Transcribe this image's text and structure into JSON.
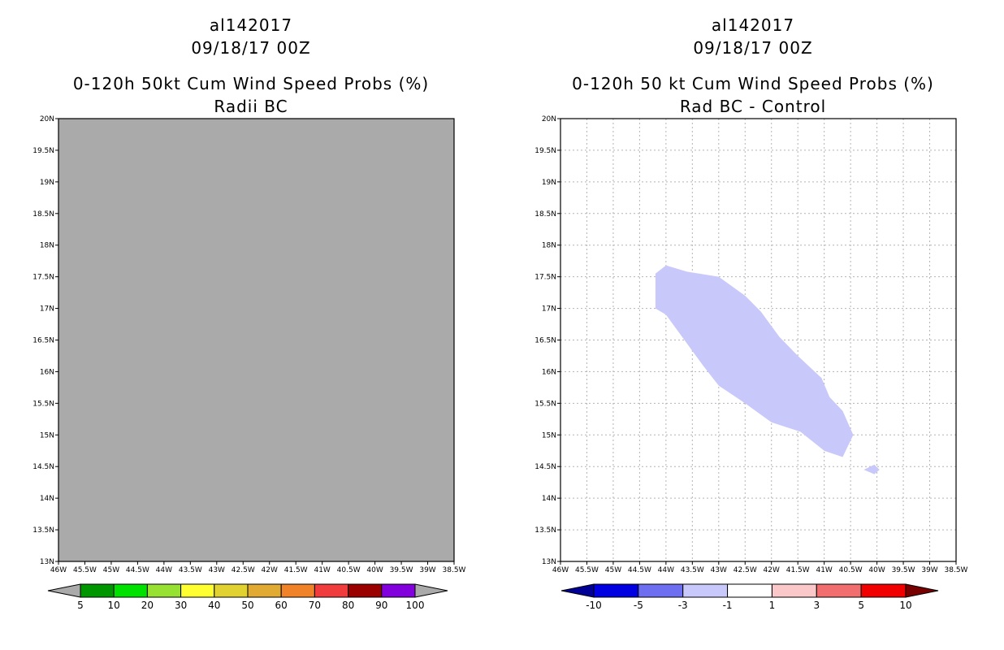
{
  "left_panel": {
    "title_lines": [
      "al142017",
      "09/18/17 00Z",
      "0-120h 50kt Cum Wind Speed Probs (%)",
      "Radii BC"
    ]
  },
  "right_panel": {
    "title_lines": [
      "al142017",
      "09/18/17 00Z",
      "0-120h 50 kt Cum Wind Speed Probs (%)",
      "Rad BC - Control"
    ]
  },
  "chart_data": [
    {
      "type": "heatmap",
      "title": "0-120h 50kt Cum Wind Speed Probs (%)",
      "subtitle": "Radii BC",
      "storm": "al142017",
      "date": "09/18/17 00Z",
      "xlim": [
        -46,
        -38.5
      ],
      "ylim": [
        13,
        20
      ],
      "x_ticks": [
        "46W",
        "45.5W",
        "45W",
        "44.5W",
        "44W",
        "43.5W",
        "43W",
        "42.5W",
        "42W",
        "41.5W",
        "41W",
        "40.5W",
        "40W",
        "39.5W",
        "39W",
        "38.5W"
      ],
      "y_ticks": [
        "13N",
        "13.5N",
        "14N",
        "14.5N",
        "15N",
        "15.5N",
        "16N",
        "16.5N",
        "17N",
        "17.5N",
        "18N",
        "18.5N",
        "19N",
        "19.5N",
        "20N"
      ],
      "grid": false,
      "background_color": "#aaaaaa",
      "colorbar": {
        "labels": [
          "5",
          "10",
          "20",
          "30",
          "40",
          "50",
          "60",
          "70",
          "80",
          "90",
          "100"
        ],
        "colors": [
          "#009600",
          "#00e100",
          "#96e132",
          "#ffff32",
          "#e1d232",
          "#e1aa32",
          "#f08228",
          "#f03c3c",
          "#9b0000",
          "#8200dc"
        ],
        "arrow_left": "#aaaaaa",
        "arrow_right": "#aaaaaa"
      },
      "regions": []
    },
    {
      "type": "heatmap",
      "title": "0-120h 50 kt Cum Wind Speed Probs (%)",
      "subtitle": "Rad BC - Control",
      "storm": "al142017",
      "date": "09/18/17 00Z",
      "xlim": [
        -46,
        -38.5
      ],
      "ylim": [
        13,
        20
      ],
      "x_ticks": [
        "46W",
        "45.5W",
        "45W",
        "44.5W",
        "44W",
        "43.5W",
        "43W",
        "42.5W",
        "42W",
        "41.5W",
        "41W",
        "40.5W",
        "40W",
        "39.5W",
        "39W",
        "38.5W"
      ],
      "y_ticks": [
        "13N",
        "13.5N",
        "14N",
        "14.5N",
        "15N",
        "15.5N",
        "16N",
        "16.5N",
        "17N",
        "17.5N",
        "18N",
        "18.5N",
        "19N",
        "19.5N",
        "20N"
      ],
      "grid": true,
      "background_color": "#ffffff",
      "colorbar": {
        "labels": [
          "-10",
          "-5",
          "-3",
          "-1",
          "1",
          "3",
          "5",
          "10"
        ],
        "colors": [
          "#0000e1",
          "#6e6ef0",
          "#c8c8fa",
          "#ffffff",
          "#fac8c8",
          "#f06e6e",
          "#f00000"
        ],
        "arrow_left": "#000096",
        "arrow_right": "#780000"
      },
      "regions": [
        {
          "range": "-3 to -1",
          "color": "#c8c8fa",
          "polygon": [
            [
              -44.2,
              17.55
            ],
            [
              -44.0,
              17.68
            ],
            [
              -43.6,
              17.58
            ],
            [
              -43.0,
              17.5
            ],
            [
              -42.5,
              17.2
            ],
            [
              -42.2,
              16.95
            ],
            [
              -41.85,
              16.55
            ],
            [
              -41.5,
              16.25
            ],
            [
              -41.05,
              15.9
            ],
            [
              -40.9,
              15.6
            ],
            [
              -40.65,
              15.38
            ],
            [
              -40.45,
              15.0
            ],
            [
              -40.65,
              14.65
            ],
            [
              -41.0,
              14.75
            ],
            [
              -41.45,
              15.05
            ],
            [
              -42.0,
              15.2
            ],
            [
              -42.5,
              15.5
            ],
            [
              -43.0,
              15.78
            ],
            [
              -43.3,
              16.1
            ],
            [
              -43.65,
              16.5
            ],
            [
              -44.0,
              16.9
            ],
            [
              -44.2,
              17.0
            ]
          ]
        },
        {
          "range": "-3 to -1",
          "color": "#c8c8fa",
          "polygon": [
            [
              -40.25,
              14.45
            ],
            [
              -40.05,
              14.53
            ],
            [
              -39.95,
              14.45
            ],
            [
              -40.05,
              14.38
            ]
          ]
        }
      ]
    }
  ]
}
